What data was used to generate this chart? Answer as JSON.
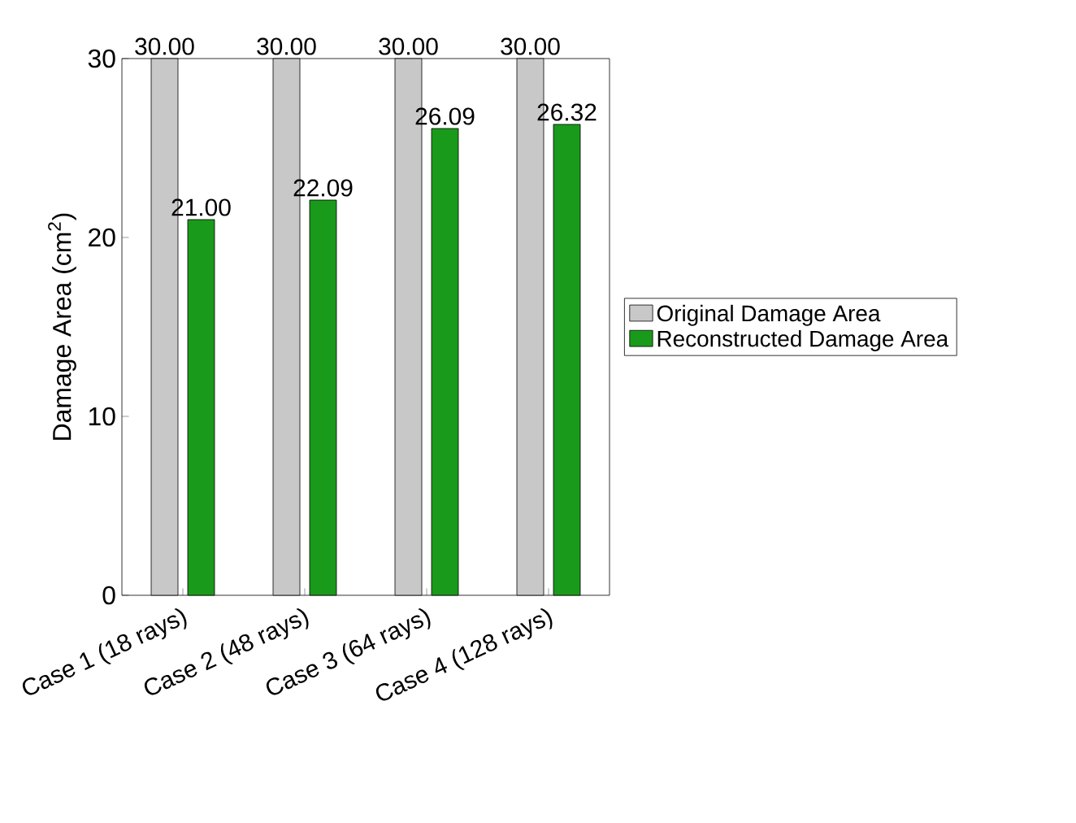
{
  "chart_data": {
    "type": "bar",
    "ylabel": "Damage Area (cm$^{2}$)",
    "categories": [
      "Case 1 (18 rays)",
      "Case 2 (48 rays)",
      "Case 3 (64 rays)",
      "Case 4 (128 rays)"
    ],
    "series": [
      {
        "name": "Original Damage Area",
        "color": "#c8c8c8",
        "values": [
          30,
          30,
          30,
          30
        ],
        "value_labels": [
          "30.00",
          "30.00",
          "30.00",
          "30.00"
        ]
      },
      {
        "name": "Reconstructed Damage Area",
        "color": "#1a9a1a",
        "values": [
          21,
          22.09,
          26.09,
          26.32
        ],
        "value_labels": [
          "21.00",
          "22.09",
          "26.09",
          "26.32"
        ]
      }
    ],
    "ylim": [
      0,
      30
    ],
    "yticks": [
      0,
      10,
      20,
      30
    ],
    "legend": "right",
    "grid": false
  }
}
